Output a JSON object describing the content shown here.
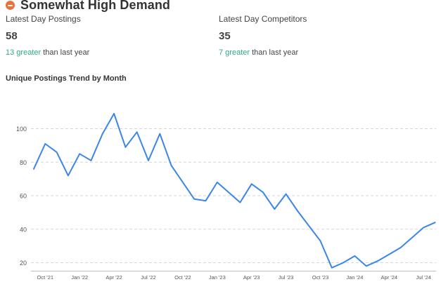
{
  "header": {
    "title": "Somewhat High Demand",
    "icon": "minus-circle-icon",
    "icon_color": "#e8743b"
  },
  "stats": {
    "postings": {
      "label": "Latest Day Postings",
      "value": "58",
      "delta_value": "13 greater",
      "delta_suffix": "than last year"
    },
    "competitors": {
      "label": "Latest Day Competitors",
      "value": "35",
      "delta_value": "7 greater",
      "delta_suffix": "than last year"
    },
    "delta_color": "#2dab84"
  },
  "chart_data": {
    "type": "line",
    "title": "Unique Postings Trend by Month",
    "xlabel": "",
    "ylabel": "",
    "ylim": [
      14,
      117
    ],
    "yticks": [
      20,
      40,
      60,
      80,
      100
    ],
    "grid": "horizontal dashed",
    "line_color": "#3b86e8",
    "x_ticks": [
      "Oct '21",
      "Jan '22",
      "Apr '22",
      "Jul '22",
      "Oct '22",
      "Jan '23",
      "Apr '23",
      "Jul '23",
      "Oct '23",
      "Jan '24",
      "Apr '24",
      "Jul '24"
    ],
    "x": [
      "2021-09",
      "2021-10",
      "2021-11",
      "2021-12",
      "2022-01",
      "2022-02",
      "2022-03",
      "2022-04",
      "2022-05",
      "2022-06",
      "2022-07",
      "2022-08",
      "2022-09",
      "2022-10",
      "2022-11",
      "2022-12",
      "2023-01",
      "2023-02",
      "2023-03",
      "2023-04",
      "2023-05",
      "2023-06",
      "2023-07",
      "2023-08",
      "2023-09",
      "2023-10",
      "2023-11",
      "2023-12",
      "2024-01",
      "2024-02",
      "2024-03",
      "2024-04",
      "2024-05",
      "2024-06",
      "2024-07",
      "2024-08"
    ],
    "series": [
      {
        "values": [
          76,
          91,
          86,
          72,
          85,
          81,
          97,
          109,
          89,
          98,
          81,
          97,
          78,
          68,
          58,
          57,
          68,
          62,
          56,
          67,
          62,
          52,
          61,
          51,
          42,
          33,
          17,
          20,
          24,
          18,
          21,
          25,
          29,
          35,
          41,
          44
        ]
      }
    ]
  }
}
